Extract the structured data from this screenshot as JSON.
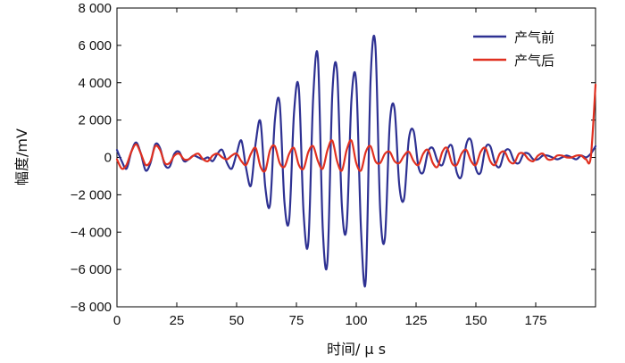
{
  "chart_data": {
    "type": "line",
    "xlabel": "时间/ μ s",
    "ylabel": "幅度/mV",
    "xlim": [
      0,
      200
    ],
    "ylim": [
      -8000,
      8000
    ],
    "x_ticks": [
      0,
      25,
      50,
      75,
      100,
      125,
      150,
      175
    ],
    "x_tick_labels": [
      "0",
      "25",
      "50",
      "75",
      "100",
      "125",
      "150",
      "175"
    ],
    "y_ticks": [
      8000,
      6000,
      4000,
      2000,
      0,
      -2000,
      -4000,
      -6000,
      -8000
    ],
    "y_tick_labels": [
      "8 000",
      "6 000",
      "4 000",
      "2 000",
      "0",
      "−2 000",
      "−4 000",
      "−6 000",
      "−8 000"
    ],
    "grid": false,
    "legend_position": "top-right",
    "series": [
      {
        "name": "产气前",
        "color": "#2e3192",
        "x": [
          0,
          2,
          4,
          6,
          8,
          10,
          12,
          14,
          16,
          18,
          20,
          22,
          24,
          26,
          28,
          30,
          32,
          34,
          36,
          38,
          40,
          42,
          44,
          46,
          48,
          50,
          52,
          54,
          56,
          58,
          60,
          62,
          64,
          66,
          68,
          70,
          72,
          74,
          76,
          78,
          80,
          82,
          84,
          86,
          88,
          90,
          92,
          94,
          96,
          98,
          100,
          102,
          104,
          106,
          108,
          110,
          112,
          114,
          116,
          118,
          120,
          122,
          124,
          126,
          128,
          130,
          132,
          134,
          136,
          138,
          140,
          142,
          144,
          146,
          148,
          150,
          152,
          154,
          156,
          158,
          160,
          162,
          164,
          166,
          168,
          170,
          172,
          174,
          176,
          178,
          180,
          182,
          184,
          186,
          188,
          190,
          192,
          194,
          196,
          198,
          200
        ],
        "values": [
          400,
          -200,
          -600,
          300,
          800,
          200,
          -700,
          -300,
          700,
          500,
          -400,
          -500,
          200,
          300,
          -200,
          -100,
          100,
          0,
          -100,
          0,
          -200,
          200,
          400,
          -300,
          -600,
          200,
          900,
          -600,
          -1500,
          800,
          1900,
          -1600,
          -2500,
          2000,
          2900,
          -2400,
          -3300,
          2400,
          3700,
          -3000,
          -4500,
          3200,
          5300,
          -3800,
          -5500,
          3400,
          4600,
          -2600,
          -3700,
          3100,
          4000,
          -3900,
          -6500,
          4200,
          6000,
          -2800,
          -4300,
          1800,
          2600,
          -1500,
          -2200,
          1000,
          1400,
          -500,
          -800,
          300,
          500,
          -200,
          -400,
          400,
          600,
          -800,
          -1000,
          700,
          900,
          -600,
          -800,
          500,
          600,
          -300,
          -500,
          300,
          400,
          -200,
          -300,
          200,
          200,
          -100,
          -100,
          100,
          100,
          0,
          -100,
          0,
          100,
          0,
          -100,
          100,
          0,
          200,
          600
        ]
      },
      {
        "name": "产气后",
        "color": "#e03020",
        "x": [
          0,
          2,
          4,
          6,
          8,
          10,
          12,
          14,
          16,
          18,
          20,
          22,
          24,
          26,
          28,
          30,
          32,
          34,
          36,
          38,
          40,
          42,
          44,
          46,
          48,
          50,
          52,
          54,
          56,
          58,
          60,
          62,
          64,
          66,
          68,
          70,
          72,
          74,
          76,
          78,
          80,
          82,
          84,
          86,
          88,
          90,
          92,
          94,
          96,
          98,
          100,
          102,
          104,
          106,
          108,
          110,
          112,
          114,
          116,
          118,
          120,
          122,
          124,
          126,
          128,
          130,
          132,
          134,
          136,
          138,
          140,
          142,
          144,
          146,
          148,
          150,
          152,
          154,
          156,
          158,
          160,
          162,
          164,
          166,
          168,
          170,
          172,
          174,
          176,
          178,
          180,
          182,
          184,
          186,
          188,
          190,
          192,
          194,
          196,
          198,
          200
        ],
        "values": [
          -100,
          -600,
          -400,
          300,
          700,
          200,
          -400,
          -200,
          600,
          400,
          -300,
          -300,
          100,
          200,
          -100,
          -100,
          100,
          200,
          -100,
          -200,
          100,
          200,
          0,
          -100,
          100,
          200,
          -200,
          -400,
          200,
          500,
          -500,
          -700,
          400,
          600,
          -300,
          -500,
          200,
          500,
          -400,
          -600,
          300,
          600,
          -200,
          -600,
          400,
          900,
          -200,
          -700,
          400,
          900,
          -300,
          -700,
          300,
          600,
          -200,
          -300,
          200,
          300,
          -200,
          -300,
          100,
          300,
          -200,
          -400,
          200,
          400,
          -300,
          -500,
          300,
          500,
          -300,
          -400,
          200,
          400,
          -200,
          -400,
          300,
          500,
          -200,
          -400,
          200,
          300,
          -200,
          -300,
          200,
          200,
          -100,
          -200,
          100,
          200,
          -100,
          -100,
          100,
          100,
          0,
          0,
          100,
          100,
          -100,
          0,
          3900
        ]
      }
    ]
  }
}
